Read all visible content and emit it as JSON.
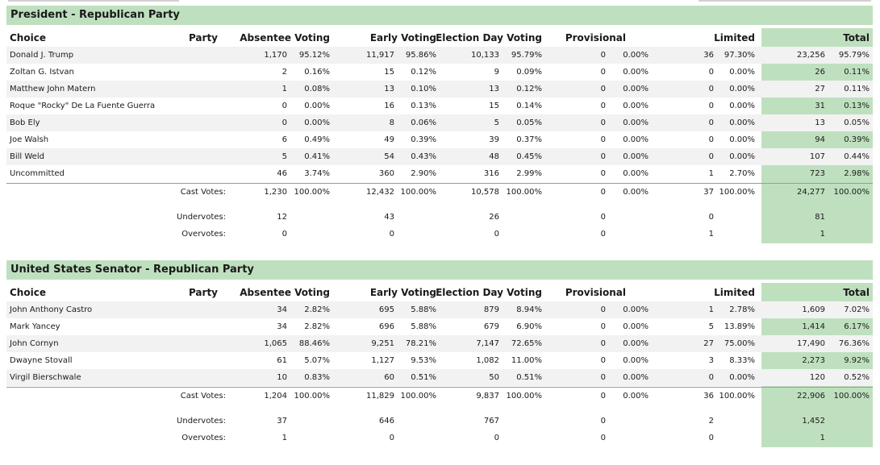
{
  "sections": [
    {
      "title": "President - Republican Party",
      "headers": {
        "choice": "Choice",
        "party": "Party",
        "absentee": "Absentee Voting",
        "early": "Early Voting",
        "eday": "Election Day Voting",
        "provisional": "Provisional",
        "limited": "Limited",
        "total": "Total"
      },
      "rows": [
        {
          "choice": "Donald J. Trump",
          "party": "",
          "absentee": [
            "1,170",
            "95.12%"
          ],
          "early": [
            "11,917",
            "95.86%"
          ],
          "eday": [
            "10,133",
            "95.79%"
          ],
          "provisional": [
            "0",
            "0.00%"
          ],
          "limited": [
            "36",
            "97.30%"
          ],
          "total": [
            "23,256",
            "95.79%"
          ]
        },
        {
          "choice": "Zoltan G. Istvan",
          "party": "",
          "absentee": [
            "2",
            "0.16%"
          ],
          "early": [
            "15",
            "0.12%"
          ],
          "eday": [
            "9",
            "0.09%"
          ],
          "provisional": [
            "0",
            "0.00%"
          ],
          "limited": [
            "0",
            "0.00%"
          ],
          "total": [
            "26",
            "0.11%"
          ]
        },
        {
          "choice": "Matthew John Matern",
          "party": "",
          "absentee": [
            "1",
            "0.08%"
          ],
          "early": [
            "13",
            "0.10%"
          ],
          "eday": [
            "13",
            "0.12%"
          ],
          "provisional": [
            "0",
            "0.00%"
          ],
          "limited": [
            "0",
            "0.00%"
          ],
          "total": [
            "27",
            "0.11%"
          ]
        },
        {
          "choice": "Roque \"Rocky\" De La Fuente Guerra",
          "party": "",
          "absentee": [
            "0",
            "0.00%"
          ],
          "early": [
            "16",
            "0.13%"
          ],
          "eday": [
            "15",
            "0.14%"
          ],
          "provisional": [
            "0",
            "0.00%"
          ],
          "limited": [
            "0",
            "0.00%"
          ],
          "total": [
            "31",
            "0.13%"
          ]
        },
        {
          "choice": "Bob Ely",
          "party": "",
          "absentee": [
            "0",
            "0.00%"
          ],
          "early": [
            "8",
            "0.06%"
          ],
          "eday": [
            "5",
            "0.05%"
          ],
          "provisional": [
            "0",
            "0.00%"
          ],
          "limited": [
            "0",
            "0.00%"
          ],
          "total": [
            "13",
            "0.05%"
          ]
        },
        {
          "choice": "Joe Walsh",
          "party": "",
          "absentee": [
            "6",
            "0.49%"
          ],
          "early": [
            "49",
            "0.39%"
          ],
          "eday": [
            "39",
            "0.37%"
          ],
          "provisional": [
            "0",
            "0.00%"
          ],
          "limited": [
            "0",
            "0.00%"
          ],
          "total": [
            "94",
            "0.39%"
          ]
        },
        {
          "choice": "Bill Weld",
          "party": "",
          "absentee": [
            "5",
            "0.41%"
          ],
          "early": [
            "54",
            "0.43%"
          ],
          "eday": [
            "48",
            "0.45%"
          ],
          "provisional": [
            "0",
            "0.00%"
          ],
          "limited": [
            "0",
            "0.00%"
          ],
          "total": [
            "107",
            "0.44%"
          ]
        },
        {
          "choice": "Uncommitted",
          "party": "",
          "absentee": [
            "46",
            "3.74%"
          ],
          "early": [
            "360",
            "2.90%"
          ],
          "eday": [
            "316",
            "2.99%"
          ],
          "provisional": [
            "0",
            "0.00%"
          ],
          "limited": [
            "1",
            "2.70%"
          ],
          "total": [
            "723",
            "2.98%"
          ]
        }
      ],
      "cast": {
        "label": "Cast Votes:",
        "absentee": [
          "1,230",
          "100.00%"
        ],
        "early": [
          "12,432",
          "100.00%"
        ],
        "eday": [
          "10,578",
          "100.00%"
        ],
        "provisional": [
          "0",
          "0.00%"
        ],
        "limited": [
          "37",
          "100.00%"
        ],
        "total": [
          "24,277",
          "100.00%"
        ]
      },
      "under": {
        "label": "Undervotes:",
        "absentee": "12",
        "early": "43",
        "eday": "26",
        "provisional": "0",
        "limited": "0",
        "total": "81"
      },
      "over": {
        "label": "Overvotes:",
        "absentee": "0",
        "early": "0",
        "eday": "0",
        "provisional": "0",
        "limited": "1",
        "total": "1"
      }
    },
    {
      "title": "United States Senator - Republican Party",
      "headers": {
        "choice": "Choice",
        "party": "Party",
        "absentee": "Absentee Voting",
        "early": "Early Voting",
        "eday": "Election Day Voting",
        "provisional": "Provisional",
        "limited": "Limited",
        "total": "Total"
      },
      "rows": [
        {
          "choice": "John Anthony Castro",
          "party": "",
          "absentee": [
            "34",
            "2.82%"
          ],
          "early": [
            "695",
            "5.88%"
          ],
          "eday": [
            "879",
            "8.94%"
          ],
          "provisional": [
            "0",
            "0.00%"
          ],
          "limited": [
            "1",
            "2.78%"
          ],
          "total": [
            "1,609",
            "7.02%"
          ]
        },
        {
          "choice": "Mark Yancey",
          "party": "",
          "absentee": [
            "34",
            "2.82%"
          ],
          "early": [
            "696",
            "5.88%"
          ],
          "eday": [
            "679",
            "6.90%"
          ],
          "provisional": [
            "0",
            "0.00%"
          ],
          "limited": [
            "5",
            "13.89%"
          ],
          "total": [
            "1,414",
            "6.17%"
          ]
        },
        {
          "choice": "John Cornyn",
          "party": "",
          "absentee": [
            "1,065",
            "88.46%"
          ],
          "early": [
            "9,251",
            "78.21%"
          ],
          "eday": [
            "7,147",
            "72.65%"
          ],
          "provisional": [
            "0",
            "0.00%"
          ],
          "limited": [
            "27",
            "75.00%"
          ],
          "total": [
            "17,490",
            "76.36%"
          ]
        },
        {
          "choice": "Dwayne Stovall",
          "party": "",
          "absentee": [
            "61",
            "5.07%"
          ],
          "early": [
            "1,127",
            "9.53%"
          ],
          "eday": [
            "1,082",
            "11.00%"
          ],
          "provisional": [
            "0",
            "0.00%"
          ],
          "limited": [
            "3",
            "8.33%"
          ],
          "total": [
            "2,273",
            "9.92%"
          ]
        },
        {
          "choice": "Virgil Bierschwale",
          "party": "",
          "absentee": [
            "10",
            "0.83%"
          ],
          "early": [
            "60",
            "0.51%"
          ],
          "eday": [
            "50",
            "0.51%"
          ],
          "provisional": [
            "0",
            "0.00%"
          ],
          "limited": [
            "0",
            "0.00%"
          ],
          "total": [
            "120",
            "0.52%"
          ]
        }
      ],
      "cast": {
        "label": "Cast Votes:",
        "absentee": [
          "1,204",
          "100.00%"
        ],
        "early": [
          "11,829",
          "100.00%"
        ],
        "eday": [
          "9,837",
          "100.00%"
        ],
        "provisional": [
          "0",
          "0.00%"
        ],
        "limited": [
          "36",
          "100.00%"
        ],
        "total": [
          "22,906",
          "100.00%"
        ]
      },
      "under": {
        "label": "Undervotes:",
        "absentee": "37",
        "early": "646",
        "eday": "767",
        "provisional": "0",
        "limited": "2",
        "total": "1,452"
      },
      "over": {
        "label": "Overvotes:",
        "absentee": "1",
        "early": "0",
        "eday": "0",
        "provisional": "0",
        "limited": "0",
        "total": "1"
      }
    }
  ]
}
